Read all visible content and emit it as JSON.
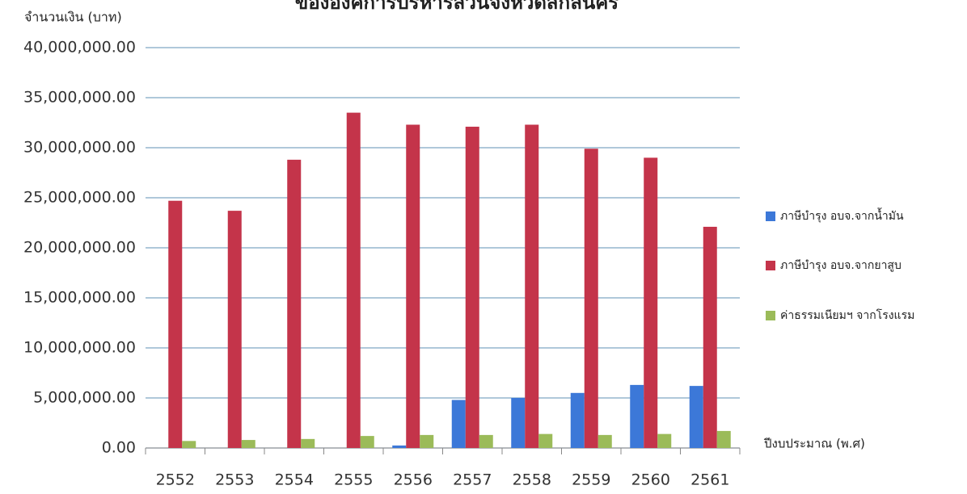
{
  "chart_data": {
    "type": "bar",
    "title": "ขององค์การบริหารส่วนจังหวัดสกลนคร",
    "y_axis_label": "จำนวนเงิน (บาท)",
    "x_axis_label": "ปีงบประมาณ (พ.ศ)",
    "categories": [
      "2552",
      "2553",
      "2554",
      "2555",
      "2556",
      "2557",
      "2558",
      "2559",
      "2560",
      "2561"
    ],
    "series": [
      {
        "name": "ภาษีบำรุง อบจ.จากน้ำมัน",
        "color": "#3c78d8",
        "values": [
          0,
          0,
          0,
          0,
          250000,
          4800000,
          5000000,
          5500000,
          6300000,
          6200000
        ]
      },
      {
        "name": "ภาษีบำรุง อบจ.จากยาสูบ",
        "color": "#c4344a",
        "values": [
          24700000,
          23700000,
          28800000,
          33500000,
          32300000,
          32100000,
          32300000,
          29900000,
          29000000,
          22100000
        ]
      },
      {
        "name": "ค่าธรรมเนียมฯ จากโรงแรม",
        "color": "#9bbb59",
        "values": [
          700000,
          800000,
          900000,
          1200000,
          1300000,
          1300000,
          1400000,
          1300000,
          1400000,
          1700000
        ]
      }
    ],
    "ylim": [
      0,
      40000000
    ],
    "yticks": [
      {
        "value": 0,
        "label": "0.00"
      },
      {
        "value": 5000000,
        "label": "5,000,000.00"
      },
      {
        "value": 10000000,
        "label": "10,000,000.00"
      },
      {
        "value": 15000000,
        "label": "15,000,000.00"
      },
      {
        "value": 20000000,
        "label": "20,000,000.00"
      },
      {
        "value": 25000000,
        "label": "25,000,000.00"
      },
      {
        "value": 30000000,
        "label": "30,000,000.00"
      },
      {
        "value": 35000000,
        "label": "35,000,000.00"
      },
      {
        "value": 40000000,
        "label": "40,000,000.00"
      }
    ],
    "grid": true,
    "legend": "right"
  }
}
